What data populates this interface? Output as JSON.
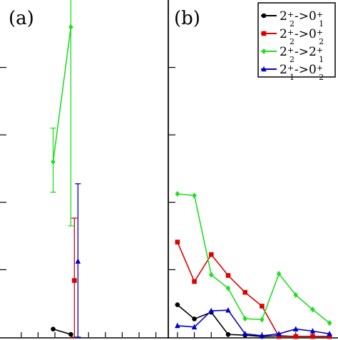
{
  "chart_data": [
    {
      "panel": "a",
      "type": "line",
      "panel_label": "(a)",
      "xlim": [
        0,
        9.5
      ],
      "ylim": [
        0,
        1.0
      ],
      "yticks": [
        0.2,
        0.4,
        0.6,
        0.8
      ],
      "xticks": [
        1,
        2,
        3,
        4,
        5,
        6,
        7,
        8,
        9
      ],
      "series": [
        {
          "name": "2_2+->0_1+",
          "color": "#000000",
          "marker": "circle",
          "points": [
            {
              "x": 3.0,
              "y": 0.024
            },
            {
              "x": 4.0,
              "y": 0.008
            }
          ]
        },
        {
          "name": "2_2+->0_2+",
          "color": "#dd0000",
          "marker": "square",
          "points": [
            {
              "x": 4.2,
              "y": 0.168,
              "err_lo": 0.168,
              "err_hi": 0.185
            }
          ]
        },
        {
          "name": "2_2+->2_1+",
          "color": "#22dd22",
          "marker": "diamond",
          "points": [
            {
              "x": 3.0,
              "y": 0.52,
              "err_lo": 0.09,
              "err_hi": 0.1
            },
            {
              "x": 4.0,
              "y": 0.92,
              "err_lo": 0.59,
              "err_hi": 0.12
            }
          ]
        },
        {
          "name": "2_1+->0_2+",
          "color": "#0000cc",
          "marker": "triangle",
          "points": [
            {
              "x": 4.4,
              "y": 0.225,
              "err_lo": 0.225,
              "err_hi": 0.23
            }
          ]
        }
      ]
    },
    {
      "panel": "b",
      "type": "line",
      "panel_label": "(b)",
      "xlim": [
        0.5,
        10.5
      ],
      "ylim": [
        0,
        1.0
      ],
      "series": [
        {
          "name": "2_2+->0_1+",
          "color": "#000000",
          "marker": "circle",
          "x": [
            1,
            2,
            3,
            4,
            5,
            6,
            7,
            8,
            9,
            10
          ],
          "y": [
            0.096,
            0.054,
            0.074,
            0.008,
            0.006,
            0.002,
            0.004,
            0.002,
            0.002,
            0.002
          ]
        },
        {
          "name": "2_2+->0_2+",
          "color": "#dd0000",
          "marker": "square",
          "x": [
            1,
            2,
            3,
            4,
            5,
            6,
            7,
            8,
            9,
            10
          ],
          "y": [
            0.282,
            0.165,
            0.245,
            0.183,
            0.133,
            0.092,
            0.002,
            0.002,
            0.002,
            0.002
          ]
        },
        {
          "name": "2_2+->2_1+",
          "color": "#22dd22",
          "marker": "diamond",
          "x": [
            1,
            2,
            3,
            4,
            5,
            6,
            7,
            8,
            9,
            10
          ],
          "y": [
            0.425,
            0.42,
            0.185,
            0.145,
            0.055,
            0.052,
            0.188,
            0.125,
            0.082,
            0.042
          ]
        },
        {
          "name": "2_1+->0_2+",
          "color": "#0000cc",
          "marker": "triangle",
          "x": [
            1,
            2,
            3,
            4,
            5,
            6,
            7,
            8,
            9,
            10
          ],
          "y": [
            0.034,
            0.03,
            0.078,
            0.08,
            0.01,
            0.004,
            0.01,
            0.024,
            0.018,
            0.01
          ]
        }
      ]
    }
  ],
  "legend": {
    "placement": "top-right",
    "entries": [
      {
        "base": "2",
        "sub": "2",
        "sup": "+",
        "arrow": "->",
        "base2": "0",
        "sub2": "1",
        "sup2": "+",
        "color": "#000000",
        "marker": "circle"
      },
      {
        "base": "2",
        "sub": "2",
        "sup": "+",
        "arrow": "->",
        "base2": "0",
        "sub2": "2",
        "sup2": "+",
        "color": "#dd0000",
        "marker": "square"
      },
      {
        "base": "2",
        "sub": "2",
        "sup": "+",
        "arrow": "->",
        "base2": "2",
        "sub2": "1",
        "sup2": "+",
        "color": "#22dd22",
        "marker": "diamond"
      },
      {
        "base": "2",
        "sub": "1",
        "sup": "+",
        "arrow": "->",
        "base2": "0",
        "sub2": "2",
        "sup2": "+",
        "color": "#0000cc",
        "marker": "triangle"
      }
    ]
  }
}
